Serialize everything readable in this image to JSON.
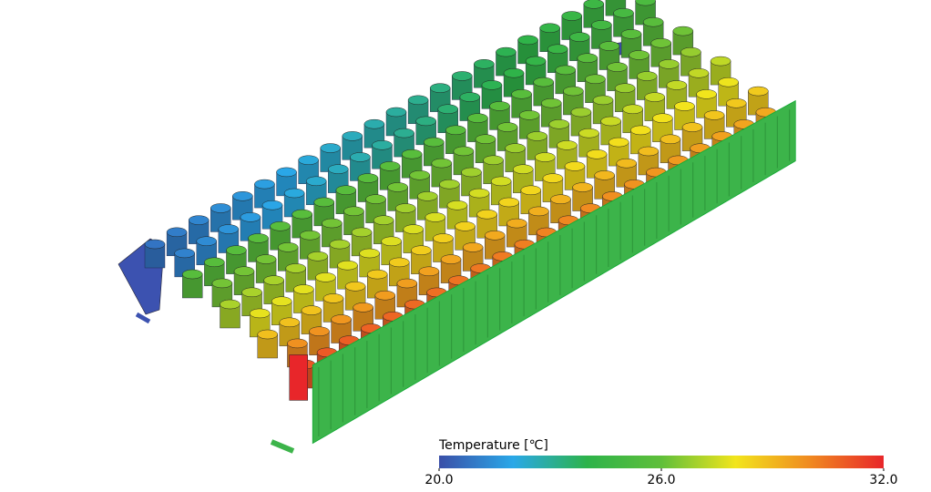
{
  "colorbar": {
    "title": "Temperature [℃]",
    "range": [
      20,
      32
    ],
    "ticks": [
      {
        "value": 20,
        "label": "20.0"
      },
      {
        "value": 26,
        "label": "26.0"
      },
      {
        "value": 32,
        "label": "32.0"
      }
    ],
    "colors": [
      "#3a4fa8",
      "#2aa8e8",
      "#2db34a",
      "#5fbf3a",
      "#f2e51c",
      "#f08a20",
      "#e8262a"
    ]
  }
}
